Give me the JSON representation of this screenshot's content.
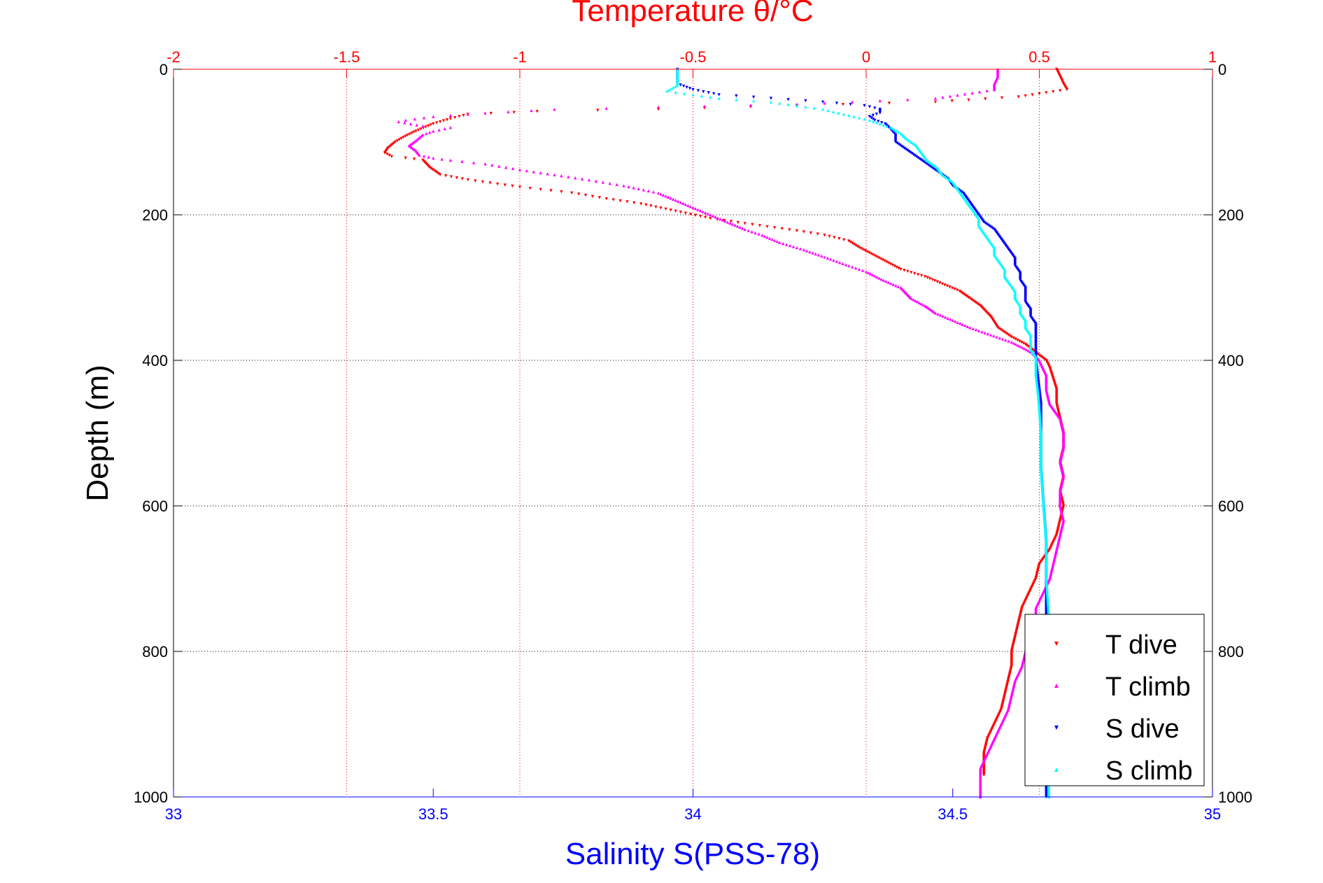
{
  "chart_data": {
    "type": "scatter",
    "title": "",
    "top_axis": {
      "label": "Temperature θ/°C",
      "range": [
        -2,
        1
      ],
      "ticks": [
        -2,
        -1.5,
        -1,
        -0.5,
        0,
        0.5,
        1
      ],
      "tick_labels": [
        "-2",
        "-1.5",
        "-1",
        "-0.5",
        "0",
        "0.5",
        "1"
      ],
      "color": "#ff0000"
    },
    "bottom_axis": {
      "label": "Salinity S(PSS-78)",
      "range": [
        33,
        35
      ],
      "ticks": [
        33,
        33.5,
        34,
        34.5,
        35
      ],
      "tick_labels": [
        "33",
        "33.5",
        "34",
        "34.5",
        "35"
      ],
      "color": "#0000ff"
    },
    "y_axis": {
      "label": "Depth (m)",
      "range": [
        0,
        1000
      ],
      "reversed": true,
      "ticks": [
        0,
        200,
        400,
        600,
        800,
        1000
      ],
      "tick_labels": [
        "0",
        "200",
        "400",
        "600",
        "800",
        "1000"
      ]
    },
    "grid": {
      "vertical": "temperature",
      "horizontal": "depth",
      "style": "dotted"
    },
    "legend": {
      "placement": "bottom-right"
    },
    "series": [
      {
        "name": "T dive",
        "axis": "temperature",
        "color": "#ff0000",
        "marker": "triangle-down",
        "points": [
          [
            0.55,
            0
          ],
          [
            0.56,
            10
          ],
          [
            0.57,
            20
          ],
          [
            0.58,
            28
          ],
          [
            0.44,
            38
          ],
          [
            0.2,
            45
          ],
          [
            -0.2,
            50
          ],
          [
            -0.6,
            55
          ],
          [
            -0.95,
            58
          ],
          [
            -1.15,
            62
          ],
          [
            -1.2,
            68
          ],
          [
            -1.25,
            75
          ],
          [
            -1.3,
            85
          ],
          [
            -1.33,
            92
          ],
          [
            -1.36,
            100
          ],
          [
            -1.38,
            108
          ],
          [
            -1.39,
            115
          ],
          [
            -1.37,
            120
          ],
          [
            -1.33,
            122
          ],
          [
            -1.28,
            125
          ],
          [
            -1.26,
            135
          ],
          [
            -1.23,
            145
          ],
          [
            -1.15,
            152
          ],
          [
            -1.0,
            162
          ],
          [
            -0.85,
            170
          ],
          [
            -0.75,
            178
          ],
          [
            -0.65,
            185
          ],
          [
            -0.55,
            195
          ],
          [
            -0.45,
            205
          ],
          [
            -0.35,
            212
          ],
          [
            -0.2,
            222
          ],
          [
            -0.12,
            228
          ],
          [
            -0.05,
            236
          ],
          [
            -0.02,
            245
          ],
          [
            0.02,
            255
          ],
          [
            0.06,
            265
          ],
          [
            0.1,
            275
          ],
          [
            0.17,
            285
          ],
          [
            0.22,
            295
          ],
          [
            0.27,
            305
          ],
          [
            0.3,
            315
          ],
          [
            0.33,
            325
          ],
          [
            0.36,
            340
          ],
          [
            0.38,
            355
          ],
          [
            0.42,
            368
          ],
          [
            0.46,
            378
          ],
          [
            0.48,
            385
          ],
          [
            0.5,
            393
          ],
          [
            0.52,
            400
          ],
          [
            0.53,
            410
          ],
          [
            0.54,
            425
          ],
          [
            0.55,
            440
          ],
          [
            0.55,
            460
          ],
          [
            0.56,
            480
          ],
          [
            0.57,
            500
          ],
          [
            0.57,
            520
          ],
          [
            0.56,
            540
          ],
          [
            0.57,
            560
          ],
          [
            0.56,
            580
          ],
          [
            0.57,
            600
          ],
          [
            0.56,
            620
          ],
          [
            0.55,
            640
          ],
          [
            0.53,
            660
          ],
          [
            0.5,
            680
          ],
          [
            0.49,
            700
          ],
          [
            0.47,
            720
          ],
          [
            0.45,
            740
          ],
          [
            0.44,
            760
          ],
          [
            0.43,
            780
          ],
          [
            0.42,
            800
          ],
          [
            0.42,
            820
          ],
          [
            0.41,
            840
          ],
          [
            0.4,
            860
          ],
          [
            0.39,
            880
          ],
          [
            0.37,
            900
          ],
          [
            0.35,
            920
          ],
          [
            0.34,
            940
          ],
          [
            0.34,
            960
          ],
          [
            0.34,
            970
          ]
        ]
      },
      {
        "name": "T climb",
        "axis": "temperature",
        "color": "#ff00ff",
        "marker": "triangle-up",
        "points": [
          [
            0.38,
            0
          ],
          [
            0.38,
            10
          ],
          [
            0.37,
            20
          ],
          [
            0.37,
            28
          ],
          [
            0.2,
            40
          ],
          [
            -0.2,
            48
          ],
          [
            -0.6,
            52
          ],
          [
            -0.9,
            55
          ],
          [
            -1.1,
            60
          ],
          [
            -1.25,
            65
          ],
          [
            -1.33,
            70
          ],
          [
            -1.35,
            72
          ],
          [
            -1.28,
            78
          ],
          [
            -1.2,
            80
          ],
          [
            -1.25,
            85
          ],
          [
            -1.28,
            90
          ],
          [
            -1.3,
            98
          ],
          [
            -1.32,
            105
          ],
          [
            -1.3,
            112
          ],
          [
            -1.29,
            118
          ],
          [
            -1.25,
            122
          ],
          [
            -1.2,
            125
          ],
          [
            -1.1,
            130
          ],
          [
            -1.0,
            138
          ],
          [
            -0.9,
            145
          ],
          [
            -0.8,
            152
          ],
          [
            -0.7,
            160
          ],
          [
            -0.6,
            170
          ],
          [
            -0.55,
            180
          ],
          [
            -0.5,
            190
          ],
          [
            -0.45,
            200
          ],
          [
            -0.4,
            210
          ],
          [
            -0.35,
            220
          ],
          [
            -0.3,
            228
          ],
          [
            -0.25,
            238
          ],
          [
            -0.18,
            248
          ],
          [
            -0.12,
            258
          ],
          [
            -0.05,
            270
          ],
          [
            0.0,
            278
          ],
          [
            0.05,
            290
          ],
          [
            0.1,
            300
          ],
          [
            0.13,
            315
          ],
          [
            0.17,
            325
          ],
          [
            0.2,
            335
          ],
          [
            0.25,
            345
          ],
          [
            0.3,
            355
          ],
          [
            0.36,
            365
          ],
          [
            0.42,
            375
          ],
          [
            0.45,
            382
          ],
          [
            0.48,
            390
          ],
          [
            0.5,
            400
          ],
          [
            0.51,
            410
          ],
          [
            0.52,
            420
          ],
          [
            0.52,
            440
          ],
          [
            0.53,
            460
          ],
          [
            0.56,
            480
          ],
          [
            0.57,
            500
          ],
          [
            0.57,
            520
          ],
          [
            0.56,
            540
          ],
          [
            0.57,
            560
          ],
          [
            0.56,
            580
          ],
          [
            0.56,
            600
          ],
          [
            0.57,
            620
          ],
          [
            0.56,
            640
          ],
          [
            0.55,
            660
          ],
          [
            0.54,
            680
          ],
          [
            0.53,
            700
          ],
          [
            0.51,
            720
          ],
          [
            0.49,
            740
          ],
          [
            0.49,
            760
          ],
          [
            0.48,
            780
          ],
          [
            0.46,
            800
          ],
          [
            0.45,
            820
          ],
          [
            0.43,
            840
          ],
          [
            0.42,
            860
          ],
          [
            0.41,
            880
          ],
          [
            0.39,
            900
          ],
          [
            0.37,
            920
          ],
          [
            0.35,
            940
          ],
          [
            0.33,
            960
          ],
          [
            0.33,
            980
          ],
          [
            0.33,
            1000
          ]
        ]
      },
      {
        "name": "S dive",
        "axis": "salinity",
        "color": "#0000ff",
        "marker": "triangle-down",
        "points": [
          [
            33.97,
            0
          ],
          [
            33.97,
            20
          ],
          [
            34.0,
            28
          ],
          [
            34.05,
            35
          ],
          [
            34.15,
            40
          ],
          [
            34.25,
            45
          ],
          [
            34.33,
            50
          ],
          [
            34.36,
            55
          ],
          [
            34.36,
            60
          ],
          [
            34.34,
            65
          ],
          [
            34.35,
            70
          ],
          [
            34.37,
            75
          ],
          [
            34.38,
            82
          ],
          [
            34.39,
            90
          ],
          [
            34.39,
            100
          ],
          [
            34.41,
            110
          ],
          [
            34.43,
            120
          ],
          [
            34.45,
            130
          ],
          [
            34.47,
            140
          ],
          [
            34.49,
            150
          ],
          [
            34.5,
            160
          ],
          [
            34.52,
            170
          ],
          [
            34.53,
            180
          ],
          [
            34.54,
            190
          ],
          [
            34.55,
            200
          ],
          [
            34.56,
            210
          ],
          [
            34.58,
            220
          ],
          [
            34.59,
            230
          ],
          [
            34.6,
            240
          ],
          [
            34.61,
            250
          ],
          [
            34.62,
            260
          ],
          [
            34.62,
            270
          ],
          [
            34.63,
            280
          ],
          [
            34.63,
            290
          ],
          [
            34.64,
            300
          ],
          [
            34.64,
            310
          ],
          [
            34.64,
            320
          ],
          [
            34.65,
            330
          ],
          [
            34.65,
            340
          ],
          [
            34.66,
            350
          ],
          [
            34.66,
            360
          ],
          [
            34.66,
            370
          ],
          [
            34.66,
            380
          ],
          [
            34.66,
            390
          ],
          [
            34.66,
            400
          ],
          [
            34.665,
            430
          ],
          [
            34.67,
            460
          ],
          [
            34.67,
            500
          ],
          [
            34.67,
            550
          ],
          [
            34.675,
            600
          ],
          [
            34.68,
            650
          ],
          [
            34.68,
            700
          ],
          [
            34.68,
            750
          ],
          [
            34.68,
            800
          ],
          [
            34.68,
            850
          ],
          [
            34.68,
            900
          ],
          [
            34.68,
            950
          ],
          [
            34.68,
            1000
          ]
        ]
      },
      {
        "name": "S climb",
        "axis": "salinity",
        "color": "#00ffff",
        "marker": "triangle-up",
        "points": [
          [
            33.97,
            0
          ],
          [
            33.97,
            15
          ],
          [
            33.97,
            22
          ],
          [
            33.95,
            30
          ],
          [
            34.0,
            35
          ],
          [
            34.05,
            40
          ],
          [
            34.15,
            45
          ],
          [
            34.2,
            50
          ],
          [
            34.25,
            55
          ],
          [
            34.28,
            60
          ],
          [
            34.31,
            65
          ],
          [
            34.34,
            70
          ],
          [
            34.36,
            75
          ],
          [
            34.38,
            80
          ],
          [
            34.4,
            88
          ],
          [
            34.41,
            95
          ],
          [
            34.43,
            105
          ],
          [
            34.44,
            115
          ],
          [
            34.45,
            125
          ],
          [
            34.47,
            135
          ],
          [
            34.48,
            145
          ],
          [
            34.5,
            155
          ],
          [
            34.51,
            165
          ],
          [
            34.52,
            175
          ],
          [
            34.53,
            185
          ],
          [
            34.54,
            195
          ],
          [
            34.55,
            205
          ],
          [
            34.55,
            215
          ],
          [
            34.56,
            225
          ],
          [
            34.57,
            235
          ],
          [
            34.58,
            245
          ],
          [
            34.58,
            255
          ],
          [
            34.59,
            265
          ],
          [
            34.6,
            275
          ],
          [
            34.6,
            285
          ],
          [
            34.61,
            295
          ],
          [
            34.62,
            305
          ],
          [
            34.62,
            315
          ],
          [
            34.63,
            325
          ],
          [
            34.63,
            335
          ],
          [
            34.64,
            345
          ],
          [
            34.64,
            355
          ],
          [
            34.65,
            365
          ],
          [
            34.65,
            375
          ],
          [
            34.65,
            385
          ],
          [
            34.66,
            395
          ],
          [
            34.66,
            420
          ],
          [
            34.665,
            450
          ],
          [
            34.67,
            500
          ],
          [
            34.67,
            550
          ],
          [
            34.675,
            600
          ],
          [
            34.68,
            650
          ],
          [
            34.68,
            700
          ],
          [
            34.685,
            750
          ],
          [
            34.685,
            800
          ],
          [
            34.685,
            850
          ],
          [
            34.685,
            900
          ],
          [
            34.685,
            950
          ],
          [
            34.685,
            1000
          ]
        ]
      }
    ]
  }
}
